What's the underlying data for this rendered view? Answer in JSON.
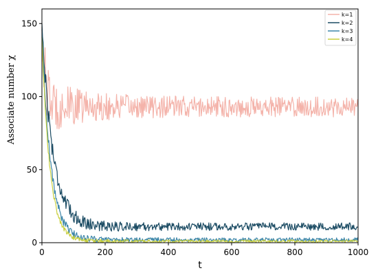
{
  "chart_data": {
    "type": "line",
    "title": "",
    "xlabel": "t",
    "ylabel": "Associate number χ",
    "xlim": [
      0,
      1000
    ],
    "ylim": [
      0,
      160
    ],
    "xticks": [
      0,
      200,
      400,
      600,
      800,
      1000
    ],
    "yticks": [
      0,
      50,
      100,
      150
    ],
    "grid": false,
    "legend_position": "top-right",
    "series": [
      {
        "name": "k=1",
        "color": "#f4b3aa",
        "start": 150,
        "plateau": 93,
        "decay_tau": 10,
        "noise": 7,
        "x": [
          0,
          25,
          50,
          100,
          200,
          300,
          400,
          500,
          600,
          700,
          800,
          900,
          1000
        ],
        "y": [
          150,
          105,
          98,
          92,
          90,
          92,
          88,
          93,
          91,
          94,
          90,
          92,
          91
        ]
      },
      {
        "name": "k=2",
        "color": "#1b4b63",
        "start": 150,
        "plateau": 11,
        "decay_tau": 35,
        "noise": 2.6,
        "x": [
          0,
          25,
          50,
          100,
          150,
          200,
          300,
          400,
          600,
          800,
          1000
        ],
        "y": [
          150,
          80,
          45,
          20,
          14,
          12,
          11,
          10,
          10,
          10,
          10
        ]
      },
      {
        "name": "k=3",
        "color": "#3d86a8",
        "start": 145,
        "plateau": 2,
        "decay_tau": 28,
        "noise": 1.4,
        "x": [
          0,
          25,
          50,
          100,
          150,
          200,
          400,
          600,
          800,
          1000
        ],
        "y": [
          145,
          65,
          32,
          9,
          4,
          2,
          2,
          2,
          2,
          2
        ]
      },
      {
        "name": "k=4",
        "color": "#c8cf3c",
        "start": 140,
        "plateau": 1,
        "decay_tau": 25,
        "noise": 0.9,
        "x": [
          0,
          25,
          50,
          100,
          150,
          200,
          400,
          600,
          800,
          1000
        ],
        "y": [
          140,
          58,
          25,
          6,
          2,
          1,
          1,
          1,
          1,
          1
        ]
      }
    ]
  }
}
